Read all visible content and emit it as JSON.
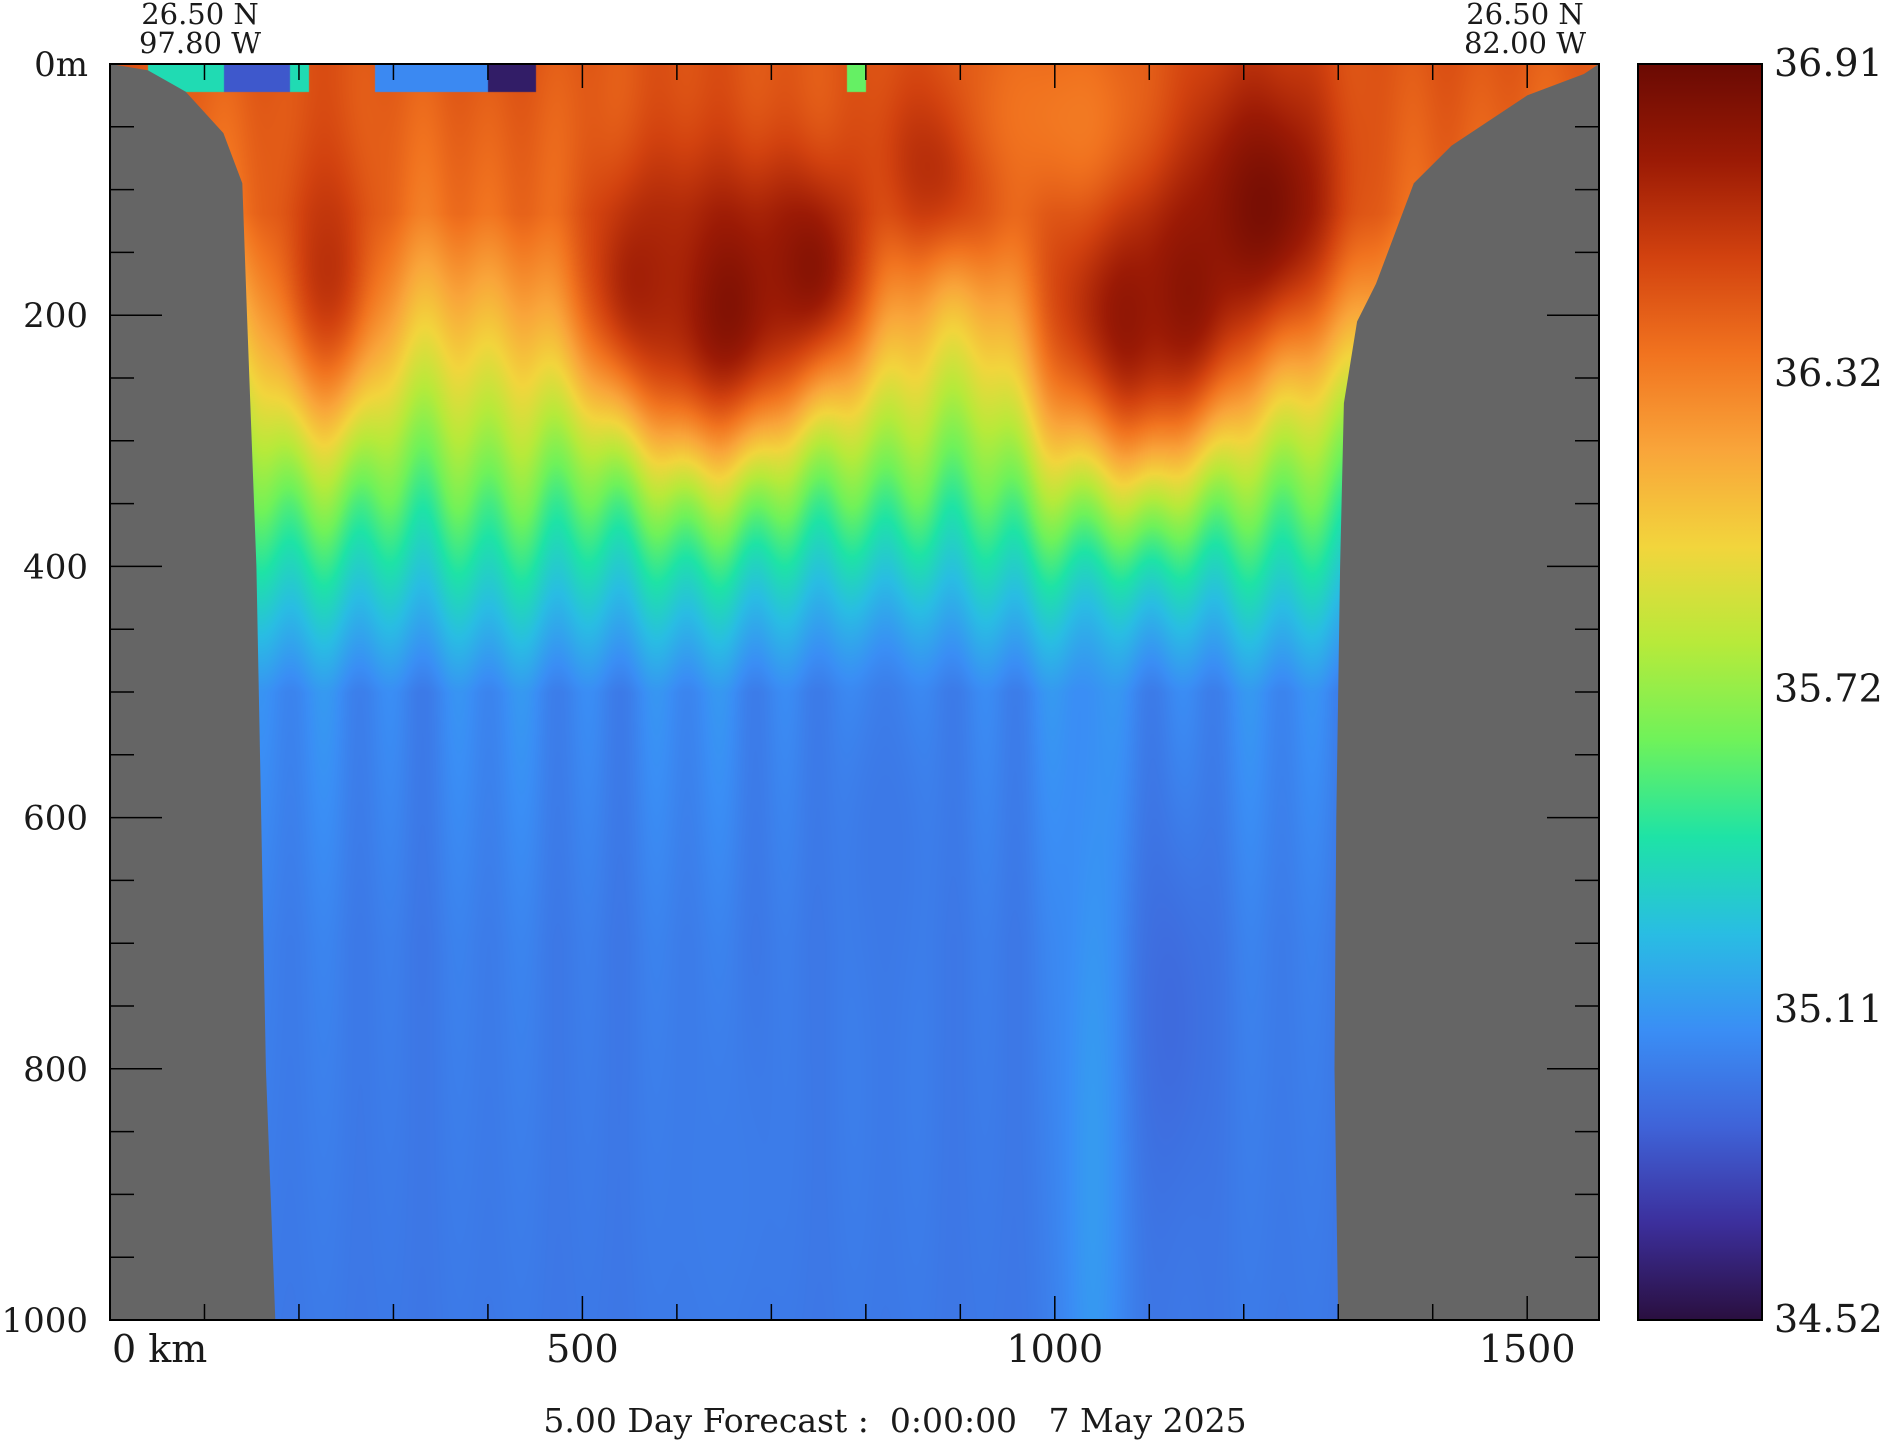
{
  "chart_data": {
    "type": "heatmap",
    "description_units": {
      "x": "km",
      "y": "m"
    },
    "corner_labels": {
      "left_lat": "26.50 N",
      "left_lon": "97.80 W",
      "right_lat": "26.50 N",
      "right_lon": "82.00 W"
    },
    "x_axis": {
      "range": [
        0,
        1576
      ],
      "major_ticks": [
        0,
        500,
        1000,
        1500
      ],
      "tick_labels": [
        "0 km",
        "500",
        "1000",
        "1500"
      ],
      "minor_step": 100
    },
    "y_axis": {
      "range": [
        0,
        1000
      ],
      "inverted": true,
      "major_ticks": [
        0,
        200,
        400,
        600,
        800,
        1000
      ],
      "tick_labels": [
        "0m",
        "200",
        "400",
        "600",
        "800",
        "1000"
      ],
      "minor_step": 50
    },
    "colorbar": {
      "min": 34.52,
      "max": 36.91,
      "tick_values": [
        36.91,
        36.32,
        35.72,
        35.11,
        34.52
      ],
      "tick_labels": [
        "36.91",
        "36.32",
        "35.72",
        "35.11",
        "34.52"
      ],
      "colors": [
        "#2a0f3f",
        "#3c2f9c",
        "#3f63d8",
        "#3a8ef5",
        "#29bde3",
        "#1ee3a6",
        "#6ff25a",
        "#b7ea3a",
        "#f2d53c",
        "#f9a53a",
        "#f1731f",
        "#d2420f",
        "#9b1a05",
        "#6a0a03"
      ]
    },
    "land_color": "#656565",
    "surface_color": "#aeddf5",
    "bathymetry_left": [
      [
        0,
        0
      ],
      [
        40,
        5
      ],
      [
        80,
        22
      ],
      [
        120,
        55
      ],
      [
        140,
        95
      ],
      [
        145,
        200
      ],
      [
        155,
        400
      ],
      [
        160,
        600
      ],
      [
        165,
        800
      ],
      [
        175,
        1000
      ]
    ],
    "bathymetry_right": [
      [
        1300,
        1000
      ],
      [
        1296,
        800
      ],
      [
        1298,
        600
      ],
      [
        1302,
        400
      ],
      [
        1306,
        270
      ],
      [
        1320,
        205
      ],
      [
        1340,
        175
      ],
      [
        1380,
        95
      ],
      [
        1420,
        65
      ],
      [
        1500,
        25
      ],
      [
        1560,
        8
      ],
      [
        1576,
        0
      ]
    ],
    "features": [
      {
        "x": 650,
        "depth": 190,
        "value": 36.85,
        "sx": 60,
        "sy": 80
      },
      {
        "x": 740,
        "depth": 160,
        "value": 36.8,
        "sx": 45,
        "sy": 60
      },
      {
        "x": 880,
        "depth": 70,
        "value": 36.75,
        "sx": 45,
        "sy": 50
      },
      {
        "x": 1060,
        "depth": 200,
        "value": 36.85,
        "sx": 55,
        "sy": 90
      },
      {
        "x": 1210,
        "depth": 110,
        "value": 36.88,
        "sx": 70,
        "sy": 80
      },
      {
        "x": 1140,
        "depth": 170,
        "value": 36.8,
        "sx": 40,
        "sy": 80
      },
      {
        "x": 230,
        "depth": 160,
        "value": 36.62,
        "sx": 40,
        "sy": 80
      },
      {
        "x": 560,
        "depth": 170,
        "value": 36.7,
        "sx": 50,
        "sy": 70
      },
      {
        "x": 1000,
        "depth": 40,
        "value": 36.35,
        "sx": 90,
        "sy": 60
      },
      {
        "x": 820,
        "depth": 620,
        "value": 34.98,
        "sx": 50,
        "sy": 120
      },
      {
        "x": 1120,
        "depth": 760,
        "value": 34.92,
        "sx": 35,
        "sy": 110
      },
      {
        "x": 650,
        "depth": 900,
        "value": 35.0,
        "sx": 50,
        "sy": 100
      },
      {
        "x": 1040,
        "depth": 880,
        "value": 35.12,
        "sx": 25,
        "sy": 300
      }
    ],
    "surface_patches": [
      {
        "x0": 40,
        "x1": 210,
        "value": 35.4
      },
      {
        "x0": 120,
        "x1": 190,
        "value": 34.85
      },
      {
        "x0": 280,
        "x1": 420,
        "value": 35.05
      },
      {
        "x0": 400,
        "x1": 450,
        "value": 34.6
      },
      {
        "x0": 780,
        "x1": 800,
        "value": 35.6
      }
    ],
    "title": "5.00 Day Forecast :  0:00:00   7 May 2025"
  }
}
